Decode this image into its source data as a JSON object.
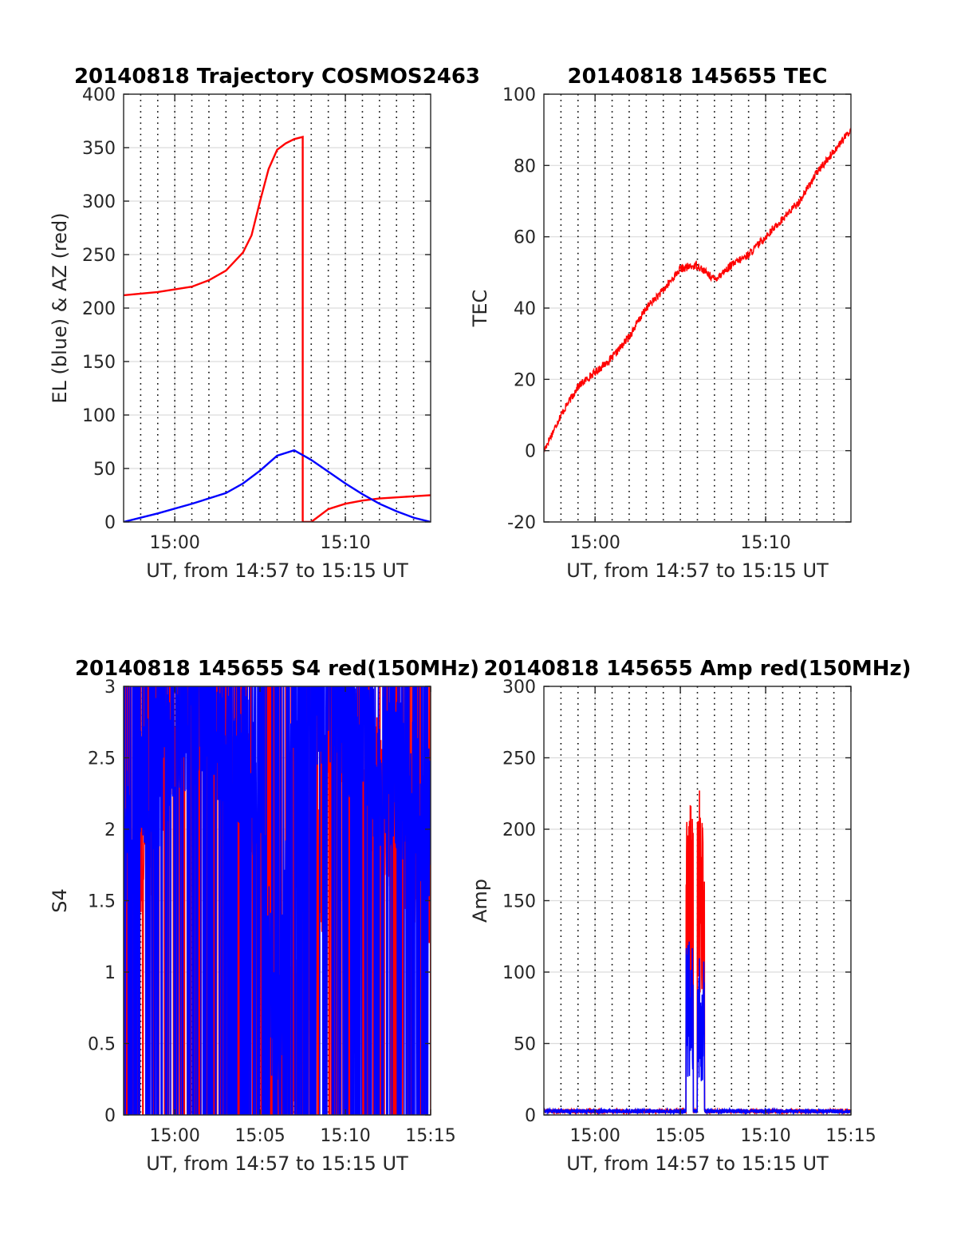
{
  "chart_data": [
    {
      "type": "line",
      "title": "20140818 Trajectory COSMOS2463",
      "xlabel": "UT, from 14:57 to 15:15 UT",
      "ylabel": "EL (blue) & AZ (red)",
      "xlim": [
        "14:57",
        "15:15"
      ],
      "ylim": [
        0,
        400
      ],
      "xticks": [
        "15:00",
        "15:10"
      ],
      "yticks": [
        0,
        50,
        100,
        150,
        200,
        250,
        300,
        350,
        400
      ],
      "grid": true,
      "series": [
        {
          "color": "#ff0000",
          "style": "line",
          "x": [
            "14:57",
            "14:59",
            "15:01",
            "15:02",
            "15:03",
            "15:04",
            "15:04:30",
            "15:05",
            "15:05:30",
            "15:06",
            "15:06:30",
            "15:07",
            "15:07:30",
            "15:08",
            "15:09",
            "15:10",
            "15:11",
            "15:12",
            "15:13",
            "15:14",
            "15:15"
          ],
          "y": [
            212,
            215,
            220,
            226,
            235,
            252,
            268,
            300,
            330,
            348,
            354,
            358,
            360,
            0,
            12,
            17,
            20,
            22,
            23,
            24,
            25
          ],
          "breaks_after": [
            12
          ]
        },
        {
          "color": "#0000ff",
          "style": "line",
          "x": [
            "14:57",
            "14:59",
            "15:01",
            "15:03",
            "15:04",
            "15:05",
            "15:06",
            "15:07",
            "15:08",
            "15:09",
            "15:10",
            "15:11",
            "15:12",
            "15:13",
            "15:14",
            "15:15"
          ],
          "y": [
            0,
            8,
            17,
            27,
            36,
            48,
            62,
            67,
            58,
            47,
            36,
            26,
            17,
            10,
            4,
            0
          ]
        }
      ]
    },
    {
      "type": "line",
      "title": "20140818 145655 TEC",
      "xlabel": "UT, from 14:57 to 15:15 UT",
      "ylabel": "TEC",
      "xlim": [
        "14:57",
        "15:15"
      ],
      "ylim": [
        -20,
        100
      ],
      "xticks": [
        "15:00",
        "15:10"
      ],
      "yticks": [
        -20,
        0,
        20,
        40,
        60,
        80,
        100
      ],
      "grid": true,
      "series": [
        {
          "color": "#ff0000",
          "style": "noisy-line",
          "x": [
            "14:57",
            "14:58",
            "14:59",
            "15:00",
            "15:01",
            "15:02",
            "15:03",
            "15:04",
            "15:05",
            "15:06",
            "15:07",
            "15:08",
            "15:09",
            "15:10",
            "15:11",
            "15:12",
            "15:13",
            "15:14",
            "15:15"
          ],
          "y": [
            0,
            10,
            18,
            22,
            26,
            32,
            40,
            45,
            51,
            52,
            48,
            52,
            55,
            60,
            65,
            70,
            78,
            84,
            90
          ]
        }
      ]
    },
    {
      "type": "line",
      "title": "20140818 145655 S4 red(150MHz)",
      "xlabel": "UT, from 14:57 to 15:15 UT",
      "ylabel": "S4",
      "xlim": [
        "14:57",
        "15:15"
      ],
      "ylim": [
        0,
        3
      ],
      "xticks": [
        "15:00",
        "15:05",
        "15:10",
        "15:15"
      ],
      "yticks": [
        0,
        0.5,
        1,
        1.5,
        2,
        2.5,
        3
      ],
      "grid": true,
      "series": [
        {
          "color": "#ff0000",
          "style": "spiky",
          "x": [
            "14:57",
            "14:58",
            "14:59",
            "15:00",
            "15:01",
            "15:02",
            "15:03",
            "15:04",
            "15:05",
            "15:06",
            "15:07",
            "15:08",
            "15:09",
            "15:10",
            "15:11",
            "15:12",
            "15:13",
            "15:14",
            "15:15"
          ],
          "y": [
            1.6,
            1.8,
            2.2,
            2.6,
            2.8,
            3.0,
            2.0,
            2.4,
            1.8,
            0.2,
            0.6,
            1.2,
            2.2,
            2.4,
            2.6,
            2.2,
            2.0,
            1.8,
            1.7
          ]
        },
        {
          "color": "#0000ff",
          "style": "spiky",
          "x": [
            "14:57",
            "14:58",
            "14:59",
            "15:00",
            "15:01",
            "15:02",
            "15:03",
            "15:04",
            "15:05",
            "15:06",
            "15:07",
            "15:08",
            "15:09",
            "15:10",
            "15:11",
            "15:12",
            "15:13",
            "15:14",
            "15:15"
          ],
          "y": [
            1.8,
            2.2,
            2.4,
            2.6,
            2.8,
            3.0,
            2.4,
            2.6,
            2.2,
            0.1,
            2.8,
            3.0,
            3.0,
            2.8,
            2.6,
            2.4,
            2.4,
            2.2,
            2.0
          ]
        }
      ]
    },
    {
      "type": "line",
      "title": "20140818 145655 Amp red(150MHz)",
      "xlabel": "UT, from 14:57 to 15:15 UT",
      "ylabel": "Amp",
      "xlim": [
        "14:57",
        "15:15"
      ],
      "ylim": [
        0,
        300
      ],
      "xticks": [
        "15:00",
        "15:05",
        "15:10",
        "15:15"
      ],
      "yticks": [
        0,
        50,
        100,
        150,
        200,
        250,
        300
      ],
      "grid": true,
      "series": [
        {
          "color": "#ff0000",
          "style": "bursts",
          "bursts": [
            {
              "start": "15:05:20",
              "end": "15:05:45",
              "peak": 220
            },
            {
              "start": "15:06:00",
              "end": "15:06:25",
              "peak": 230
            }
          ],
          "baseline": 2
        },
        {
          "color": "#0000ff",
          "style": "bursts",
          "bursts": [
            {
              "start": "15:05:20",
              "end": "15:05:45",
              "peak": 122
            },
            {
              "start": "15:06:00",
              "end": "15:06:25",
              "peak": 115
            }
          ],
          "baseline": 2
        }
      ]
    }
  ]
}
